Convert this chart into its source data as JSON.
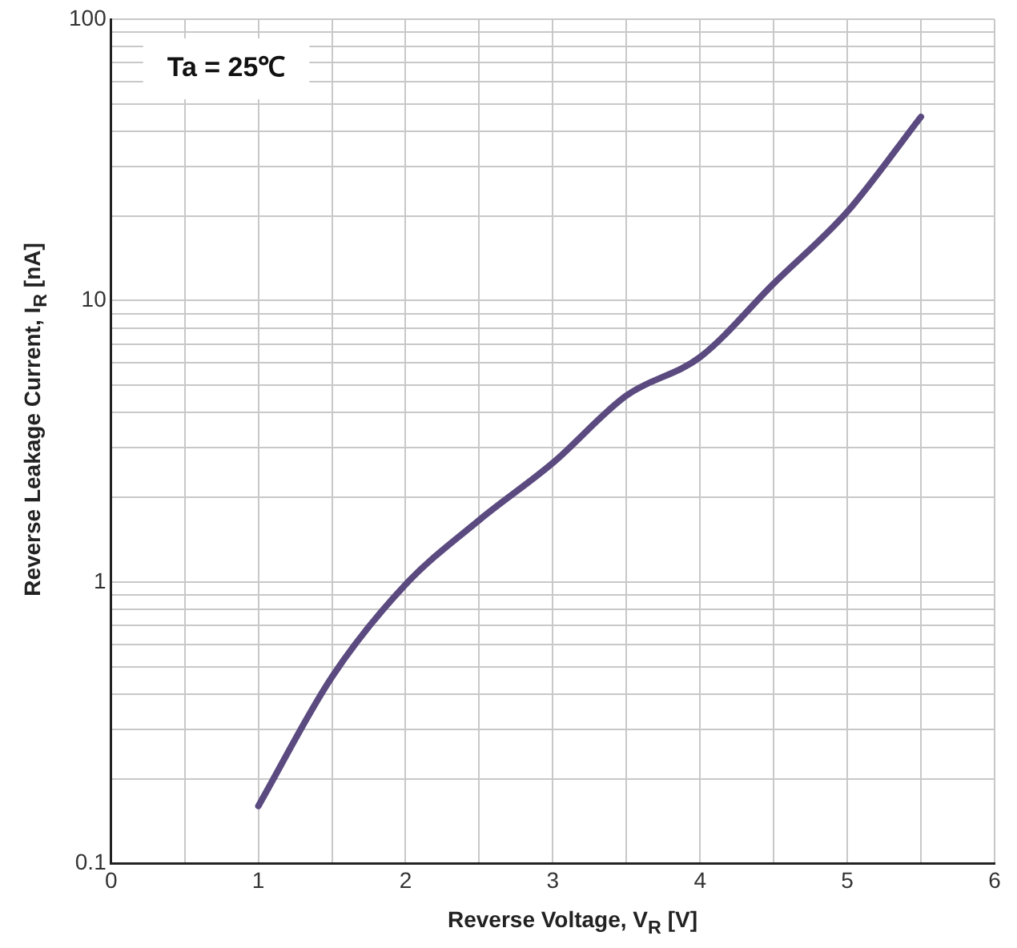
{
  "chart_data": {
    "type": "line",
    "xlabel": "Reverse Voltage, V$_{R}$ [V]",
    "ylabel": "Reverse Leakage Current, I$_{R}$ [nA]",
    "annotations": [
      "Ta = 25℃"
    ],
    "x": [
      1,
      1.5,
      2,
      2.5,
      3,
      3.5,
      4,
      4.5,
      5,
      5.5
    ],
    "series": [
      {
        "color": "#5b4a80",
        "values": [
          0.16,
          0.46,
          0.98,
          1.66,
          2.65,
          4.6,
          6.3,
          11.5,
          20.7,
          45
        ]
      }
    ],
    "xlim": [
      0,
      6
    ],
    "xticks": [
      0,
      {
        "value": 0.5,
        "label": null
      },
      1,
      {
        "value": 1.5,
        "label": null
      },
      2,
      {
        "value": 2.5,
        "label": null
      },
      3,
      {
        "value": 3.5,
        "label": null
      },
      4,
      {
        "value": 4.5,
        "label": null
      },
      5,
      {
        "value": 5.5,
        "label": null
      },
      6
    ],
    "ylim": [
      0.1,
      100
    ],
    "yticks": [
      0.1,
      {
        "value": 0.2,
        "label": null
      },
      {
        "value": 0.3,
        "label": null
      },
      {
        "value": 0.4,
        "label": null
      },
      {
        "value": 0.5,
        "label": null
      },
      {
        "value": 0.6,
        "label": null
      },
      {
        "value": 0.7,
        "label": null
      },
      {
        "value": 0.8,
        "label": null
      },
      {
        "value": 0.9,
        "label": null
      },
      1,
      {
        "value": 2,
        "label": null
      },
      {
        "value": 3,
        "label": null
      },
      {
        "value": 4,
        "label": null
      },
      {
        "value": 5,
        "label": null
      },
      {
        "value": 6,
        "label": null
      },
      {
        "value": 7,
        "label": null
      },
      {
        "value": 8,
        "label": null
      },
      {
        "value": 9,
        "label": null
      },
      10,
      {
        "value": 20,
        "label": null
      },
      {
        "value": 30,
        "label": null
      },
      {
        "value": 40,
        "label": null
      },
      {
        "value": 50,
        "label": null
      },
      {
        "value": 60,
        "label": null
      },
      {
        "value": 70,
        "label": null
      },
      {
        "value": 80,
        "label": null
      },
      {
        "value": 90,
        "label": null
      },
      100
    ],
    "log": "y",
    "grid": true,
    "legend": false,
    "marker": "none",
    "line_style": "solid"
  }
}
